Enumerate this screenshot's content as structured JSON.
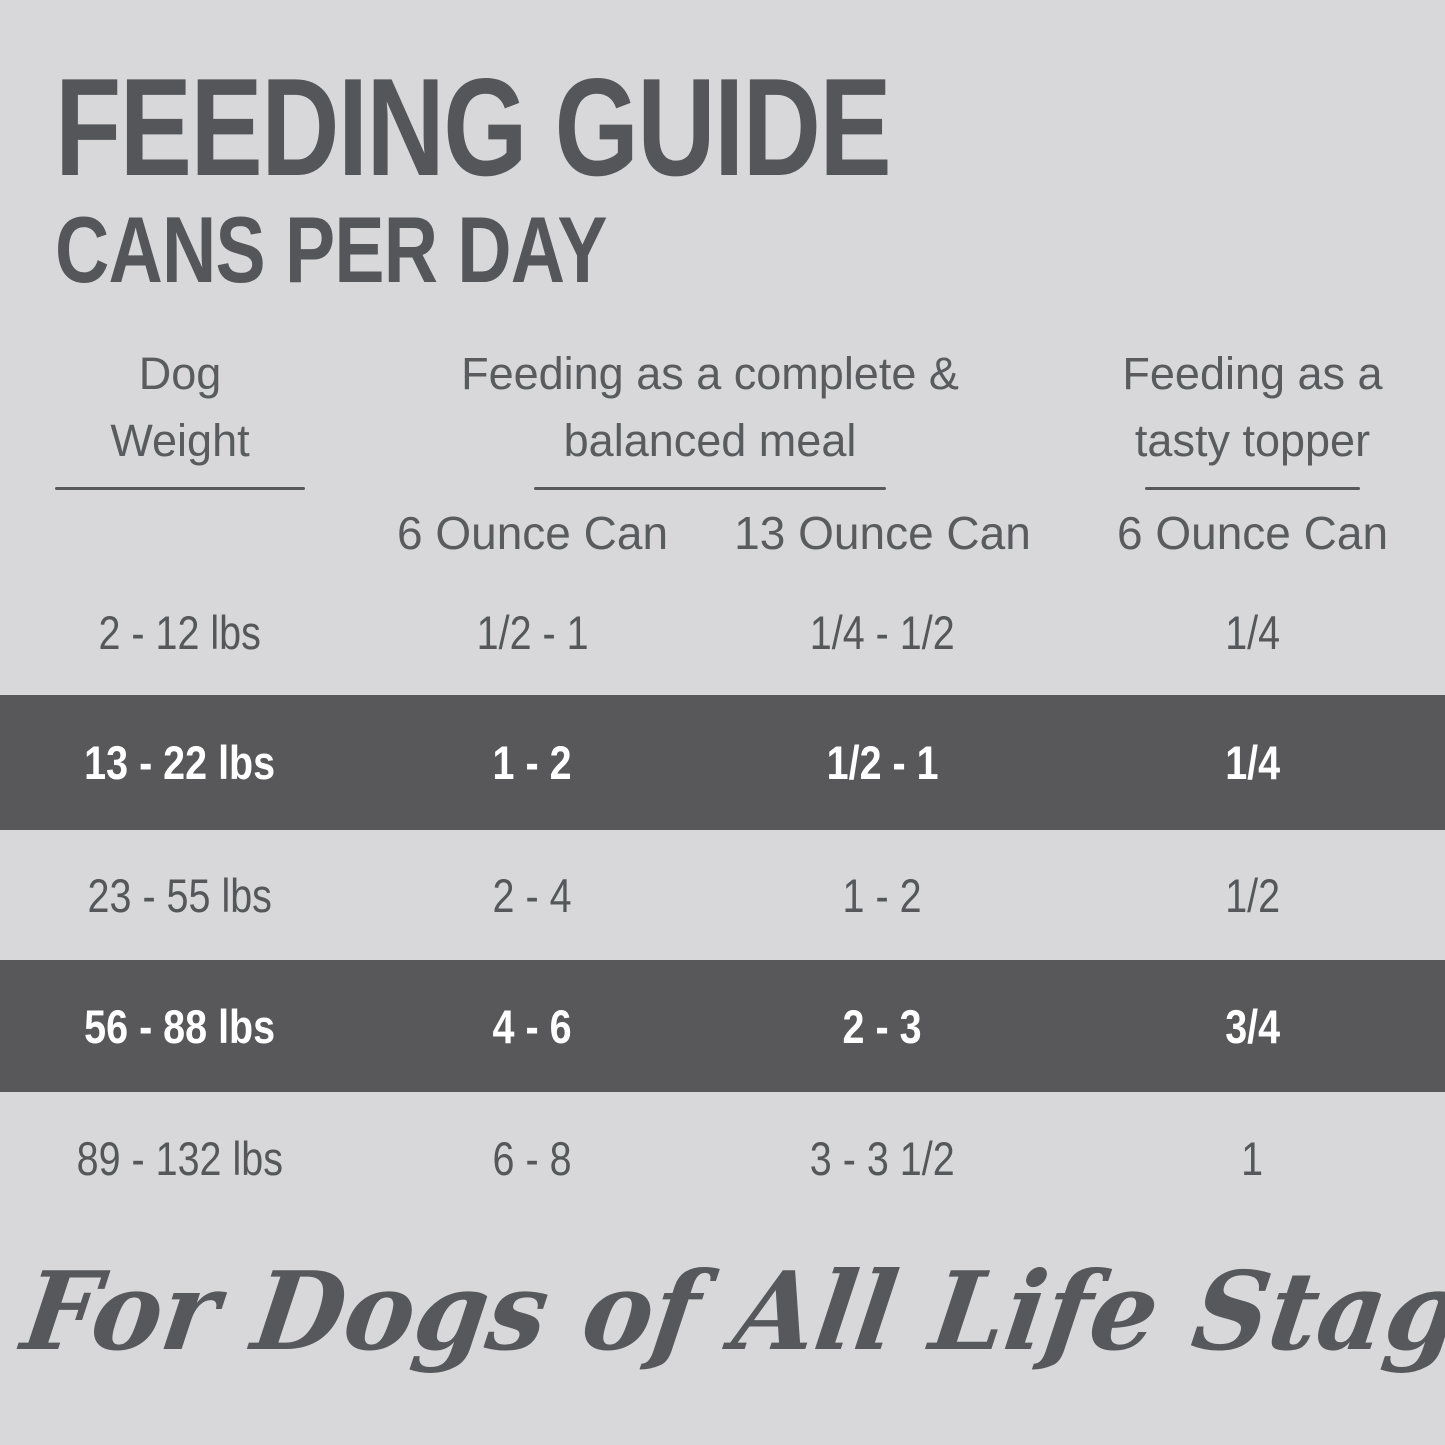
{
  "title": "FEEDING GUIDE",
  "subtitle": "CANS PER DAY",
  "colors": {
    "background": "#d8d8da",
    "highlight_row_background": "#58585a",
    "dark_text": "#57585b",
    "highlight_row_text": "#ffffff"
  },
  "table": {
    "column_groups": [
      {
        "line1": "Dog",
        "line2": "Weight"
      },
      {
        "line1": "Feeding as a complete &",
        "line2": "balanced meal"
      },
      {
        "line1": "Feeding as a",
        "line2": "tasty topper"
      }
    ],
    "sub_headers": [
      "6 Ounce Can",
      "13 Ounce Can",
      "6 Ounce Can"
    ],
    "rows": [
      {
        "weight": "2 - 12 lbs",
        "meal_6oz": "1/2 - 1",
        "meal_13oz": "1/4 - 1/2",
        "topper_6oz": "1/4",
        "highlighted": false
      },
      {
        "weight": "13 - 22 lbs",
        "meal_6oz": "1 - 2",
        "meal_13oz": "1/2 - 1",
        "topper_6oz": "1/4",
        "highlighted": true
      },
      {
        "weight": "23 - 55 lbs",
        "meal_6oz": "2 - 4",
        "meal_13oz": "1 - 2",
        "topper_6oz": "1/2",
        "highlighted": false
      },
      {
        "weight": "56 - 88 lbs",
        "meal_6oz": "4 - 6",
        "meal_13oz": "2 - 3",
        "topper_6oz": "3/4",
        "highlighted": true
      },
      {
        "weight": "89 - 132 lbs",
        "meal_6oz": "6 - 8",
        "meal_13oz": "3 - 3 1/2",
        "topper_6oz": "1",
        "highlighted": false
      }
    ]
  },
  "footer": "For Dogs of All Life Stages"
}
